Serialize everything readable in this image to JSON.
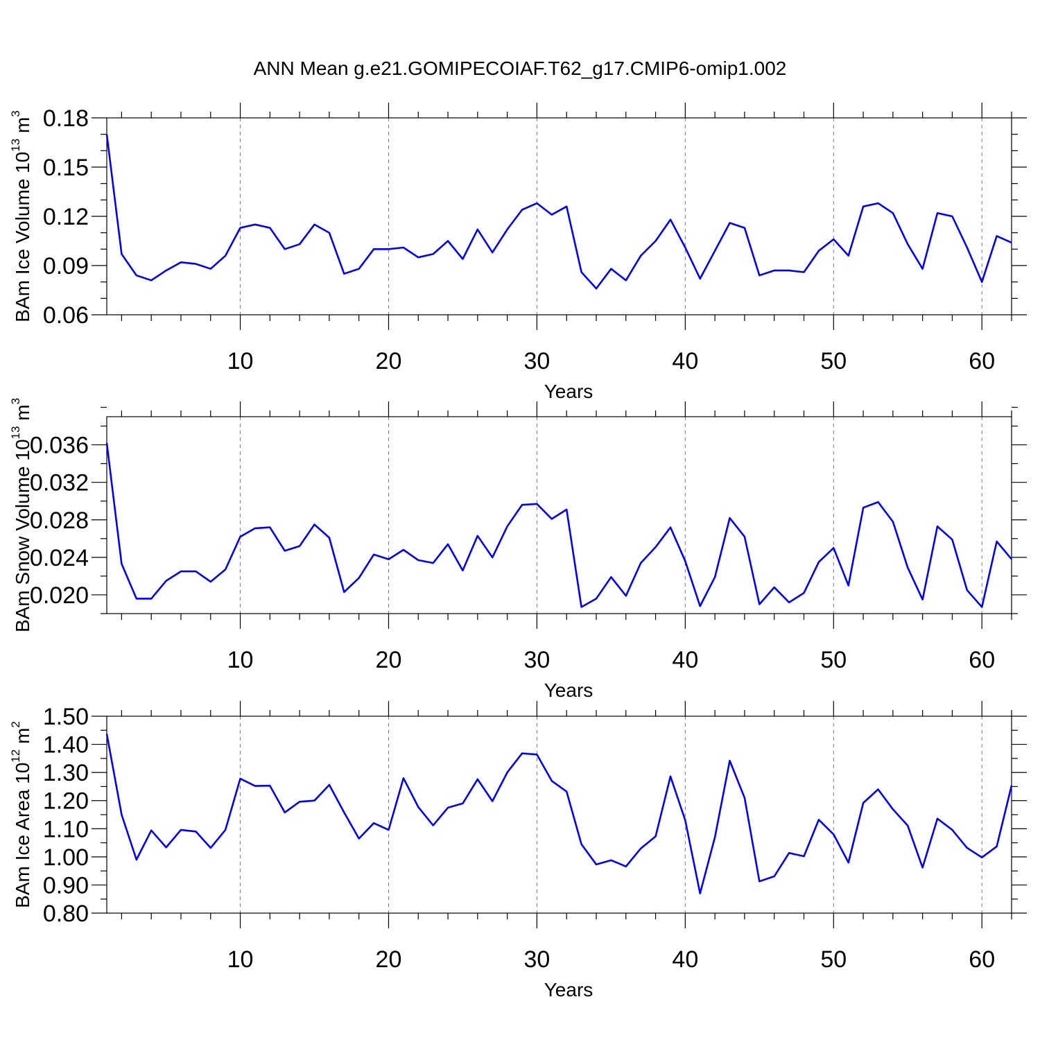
{
  "title": "ANN Mean g.e21.GOMIPECOIAF.T62_g17.CMIP6-omip1.002",
  "line_color": "#0000ff",
  "chart_data": [
    {
      "type": "line",
      "ylabel": {
        "base": "BAm Ice Volume 10",
        "exp": "13",
        "unit": " m",
        "unit_exp": "3"
      },
      "xlabel": "Years",
      "xlim": [
        1,
        62
      ],
      "ylim": [
        0.06,
        0.18
      ],
      "x_ticks": [
        10,
        20,
        30,
        40,
        50,
        60
      ],
      "x_tick_labels": [
        "10",
        "20",
        "30",
        "40",
        "50",
        "60"
      ],
      "y_ticks": [
        0.06,
        0.09,
        0.12,
        0.15,
        0.18
      ],
      "y_tick_labels": [
        "0.06",
        "0.09",
        "0.12",
        "0.15",
        "0.18"
      ],
      "x": [
        1,
        2,
        3,
        4,
        5,
        6,
        7,
        8,
        9,
        10,
        11,
        12,
        13,
        14,
        15,
        16,
        17,
        18,
        19,
        20,
        21,
        22,
        23,
        24,
        25,
        26,
        27,
        28,
        29,
        30,
        31,
        32,
        33,
        34,
        35,
        36,
        37,
        38,
        39,
        40,
        41,
        42,
        43,
        44,
        45,
        46,
        47,
        48,
        49,
        50,
        51,
        52,
        53,
        54,
        55,
        56,
        57,
        58,
        59,
        60,
        61,
        62
      ],
      "values": [
        0.17,
        0.097,
        0.084,
        0.081,
        0.087,
        0.092,
        0.091,
        0.088,
        0.096,
        0.113,
        0.115,
        0.113,
        0.1,
        0.103,
        0.115,
        0.11,
        0.085,
        0.088,
        0.1,
        0.1,
        0.101,
        0.095,
        0.097,
        0.105,
        0.094,
        0.112,
        0.098,
        0.112,
        0.124,
        0.128,
        0.121,
        0.126,
        0.086,
        0.076,
        0.088,
        0.081,
        0.096,
        0.105,
        0.118,
        0.101,
        0.082,
        0.099,
        0.116,
        0.113,
        0.084,
        0.087,
        0.087,
        0.086,
        0.099,
        0.106,
        0.096,
        0.126,
        0.128,
        0.122,
        0.103,
        0.088,
        0.122,
        0.12,
        0.101,
        0.08,
        0.108,
        0.104
      ]
    },
    {
      "type": "line",
      "ylabel": {
        "base": "BAm Snow Volume 10",
        "exp": "13",
        "unit": " m",
        "unit_exp": "3"
      },
      "xlabel": "Years",
      "xlim": [
        1,
        62
      ],
      "ylim": [
        0.018,
        0.039
      ],
      "x_ticks": [
        10,
        20,
        30,
        40,
        50,
        60
      ],
      "x_tick_labels": [
        "10",
        "20",
        "30",
        "40",
        "50",
        "60"
      ],
      "y_ticks": [
        0.02,
        0.024,
        0.028,
        0.032,
        0.036
      ],
      "y_tick_labels": [
        "0.020",
        "0.024",
        "0.028",
        "0.032",
        "0.036"
      ],
      "x": [
        1,
        2,
        3,
        4,
        5,
        6,
        7,
        8,
        9,
        10,
        11,
        12,
        13,
        14,
        15,
        16,
        17,
        18,
        19,
        20,
        21,
        22,
        23,
        24,
        25,
        26,
        27,
        28,
        29,
        30,
        31,
        32,
        33,
        34,
        35,
        36,
        37,
        38,
        39,
        40,
        41,
        42,
        43,
        44,
        45,
        46,
        47,
        48,
        49,
        50,
        51,
        52,
        53,
        54,
        55,
        56,
        57,
        58,
        59,
        60,
        61,
        62
      ],
      "values": [
        0.0362,
        0.0233,
        0.0196,
        0.0196,
        0.0215,
        0.0225,
        0.0225,
        0.0214,
        0.0227,
        0.0262,
        0.0271,
        0.0272,
        0.0247,
        0.0252,
        0.0275,
        0.0261,
        0.0203,
        0.0218,
        0.0243,
        0.0238,
        0.0248,
        0.0237,
        0.0234,
        0.0254,
        0.0226,
        0.0263,
        0.024,
        0.0273,
        0.0296,
        0.0297,
        0.0281,
        0.0291,
        0.0187,
        0.0196,
        0.0219,
        0.0199,
        0.0234,
        0.0251,
        0.0272,
        0.0236,
        0.0188,
        0.0219,
        0.0282,
        0.0262,
        0.019,
        0.0208,
        0.0192,
        0.0202,
        0.0235,
        0.025,
        0.021,
        0.0293,
        0.0299,
        0.0278,
        0.0229,
        0.0195,
        0.0273,
        0.0259,
        0.0205,
        0.0187,
        0.0257,
        0.0238
      ]
    },
    {
      "type": "line",
      "ylabel": {
        "base": "BAm Ice Area 10",
        "exp": "12",
        "unit": " m",
        "unit_exp": "2"
      },
      "xlabel": "Years",
      "xlim": [
        1,
        62
      ],
      "ylim": [
        0.8,
        1.5
      ],
      "x_ticks": [
        10,
        20,
        30,
        40,
        50,
        60
      ],
      "x_tick_labels": [
        "10",
        "20",
        "30",
        "40",
        "50",
        "60"
      ],
      "y_ticks": [
        0.8,
        0.9,
        1.0,
        1.1,
        1.2,
        1.3,
        1.4,
        1.5
      ],
      "y_tick_labels": [
        "0.80",
        "0.90",
        "1.00",
        "1.10",
        "1.20",
        "1.30",
        "1.40",
        "1.50"
      ],
      "x": [
        1,
        2,
        3,
        4,
        5,
        6,
        7,
        8,
        9,
        10,
        11,
        12,
        13,
        14,
        15,
        16,
        17,
        18,
        19,
        20,
        21,
        22,
        23,
        24,
        25,
        26,
        27,
        28,
        29,
        30,
        31,
        32,
        33,
        34,
        35,
        36,
        37,
        38,
        39,
        40,
        41,
        42,
        43,
        44,
        45,
        46,
        47,
        48,
        49,
        50,
        51,
        52,
        53,
        54,
        55,
        56,
        57,
        58,
        59,
        60,
        61,
        62
      ],
      "values": [
        1.437,
        1.15,
        0.99,
        1.094,
        1.034,
        1.096,
        1.09,
        1.032,
        1.096,
        1.278,
        1.252,
        1.253,
        1.158,
        1.196,
        1.2,
        1.256,
        1.158,
        1.065,
        1.12,
        1.096,
        1.28,
        1.177,
        1.112,
        1.175,
        1.19,
        1.276,
        1.198,
        1.3,
        1.368,
        1.364,
        1.27,
        1.232,
        1.045,
        0.973,
        0.988,
        0.966,
        1.03,
        1.073,
        1.286,
        1.13,
        0.87,
        1.07,
        1.342,
        1.21,
        0.913,
        0.931,
        1.014,
        1.002,
        1.132,
        1.08,
        0.98,
        1.192,
        1.24,
        1.169,
        1.111,
        0.962,
        1.136,
        1.096,
        1.032,
        0.998,
        1.037,
        1.254
      ]
    }
  ]
}
